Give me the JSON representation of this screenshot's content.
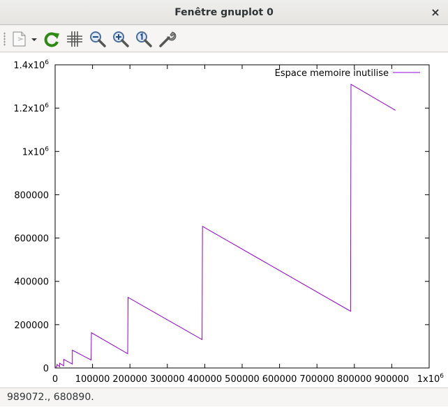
{
  "window": {
    "title": "Fenêtre gnuplot 0",
    "close_glyph": "×"
  },
  "toolbar": {
    "items": [
      {
        "name": "export-menu",
        "icon": "document-export-icon"
      },
      {
        "name": "replot",
        "icon": "refresh-icon"
      },
      {
        "name": "toggle-grid",
        "icon": "grid-icon"
      },
      {
        "name": "zoom-out",
        "icon": "zoom-out-icon"
      },
      {
        "name": "zoom-in",
        "icon": "zoom-in-icon"
      },
      {
        "name": "zoom-reset",
        "icon": "zoom-original-icon"
      },
      {
        "name": "settings",
        "icon": "wrench-icon"
      }
    ]
  },
  "status": {
    "text": "989072.,  680890."
  },
  "colors": {
    "series": "#9400d3"
  },
  "chart_data": {
    "type": "line",
    "xlim": [
      0,
      1000000
    ],
    "ylim": [
      0,
      1400000
    ],
    "x_ticks": [
      {
        "value": 0,
        "label": "0"
      },
      {
        "value": 100000,
        "label": "100000"
      },
      {
        "value": 200000,
        "label": "200000"
      },
      {
        "value": 300000,
        "label": "300000"
      },
      {
        "value": 400000,
        "label": "400000"
      },
      {
        "value": 500000,
        "label": "500000"
      },
      {
        "value": 600000,
        "label": "600000"
      },
      {
        "value": 700000,
        "label": "700000"
      },
      {
        "value": 800000,
        "label": "800000"
      },
      {
        "value": 900000,
        "label": "900000"
      },
      {
        "value": 1000000,
        "label": "1x10",
        "sup": "6"
      }
    ],
    "y_ticks": [
      {
        "value": 0,
        "label": "0"
      },
      {
        "value": 200000,
        "label": "200000"
      },
      {
        "value": 400000,
        "label": "400000"
      },
      {
        "value": 600000,
        "label": "600000"
      },
      {
        "value": 800000,
        "label": "800000"
      },
      {
        "value": 1000000,
        "label": "1x10",
        "sup": "6"
      },
      {
        "value": 1200000,
        "label": "1.2x10",
        "sup": "6"
      },
      {
        "value": 1400000,
        "label": "1.4x10",
        "sup": "6"
      }
    ],
    "legend": "top-right",
    "grid": false,
    "series": [
      {
        "name": "Espace memoire inutilise",
        "x": [
          0,
          5000,
          5000,
          12000,
          12000,
          23000,
          23000,
          46000,
          46000,
          96000,
          96000,
          97000,
          97000,
          194000,
          194000,
          195000,
          195000,
          393000,
          393000,
          394000,
          394000,
          790000,
          790000,
          791000,
          910000
        ],
        "y": [
          0,
          8000,
          16000,
          6000,
          22000,
          10000,
          40000,
          18000,
          82000,
          37000,
          37000,
          163000,
          163000,
          66000,
          66000,
          326000,
          326000,
          131000,
          131000,
          654000,
          654000,
          262000,
          262000,
          1310000,
          1190000
        ]
      }
    ]
  }
}
